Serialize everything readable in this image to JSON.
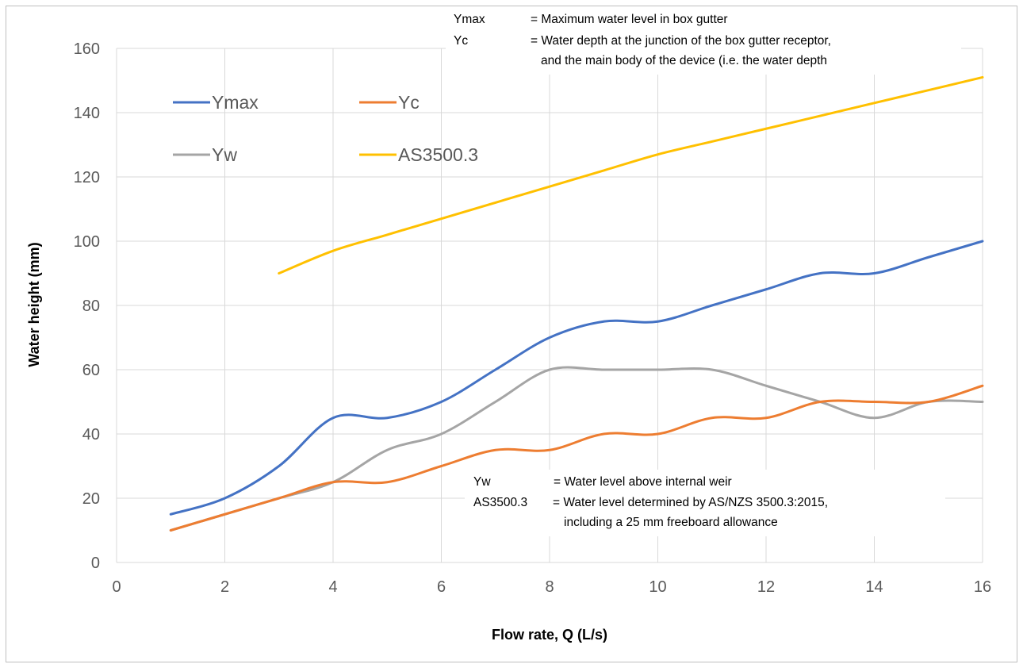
{
  "chart_data": {
    "type": "line",
    "xlabel": "Flow rate, Q (L/s)",
    "ylabel": "Water height (mm)",
    "xlim": [
      0,
      16
    ],
    "ylim": [
      0,
      160
    ],
    "xticks": [
      0,
      2,
      4,
      6,
      8,
      10,
      12,
      14,
      16
    ],
    "yticks": [
      0,
      20,
      40,
      60,
      80,
      100,
      120,
      140,
      160
    ],
    "grid": true,
    "legend": "top-left, two columns",
    "series": [
      {
        "name": "Ymax",
        "color": "#4472C4",
        "x": [
          1,
          2,
          3,
          4,
          5,
          6,
          7,
          8,
          9,
          10,
          11,
          12,
          13,
          14,
          15,
          16
        ],
        "y": [
          15,
          20,
          30,
          45,
          45,
          50,
          60,
          70,
          75,
          75,
          80,
          85,
          90,
          90,
          95,
          100
        ]
      },
      {
        "name": "Yc",
        "color": "#ED7D31",
        "x": [
          1,
          2,
          3,
          4,
          5,
          6,
          7,
          8,
          9,
          10,
          11,
          12,
          13,
          14,
          15,
          16
        ],
        "y": [
          10,
          15,
          20,
          25,
          25,
          30,
          35,
          35,
          40,
          40,
          45,
          45,
          50,
          50,
          50,
          55
        ]
      },
      {
        "name": "Yw",
        "color": "#A5A5A5",
        "x": [
          1,
          2,
          3,
          4,
          5,
          6,
          7,
          8,
          9,
          10,
          11,
          12,
          13,
          14,
          15,
          16
        ],
        "y": [
          10,
          15,
          20,
          25,
          35,
          40,
          50,
          60,
          60,
          60,
          60,
          55,
          50,
          45,
          50,
          50
        ]
      },
      {
        "name": "AS3500.3",
        "color": "#FFC000",
        "x": [
          3,
          4,
          5,
          6,
          7,
          8,
          9,
          10,
          11,
          12,
          13,
          14,
          15,
          16
        ],
        "y": [
          90,
          97,
          102,
          107,
          112,
          117,
          122,
          127,
          131,
          135,
          139,
          143,
          147,
          151
        ]
      }
    ],
    "annotations": {
      "top": [
        {
          "term": "Ymax",
          "desc": "= Maximum water level in box gutter"
        },
        {
          "term": "Yc",
          "desc": "= Water depth at the junction of the box gutter receptor,"
        },
        {
          "term": "",
          "desc": "and the main body of the device (i.e. the water depth"
        }
      ],
      "bottom": [
        {
          "term": "Yw",
          "desc": "= Water level above internal weir"
        },
        {
          "term": "AS3500.3",
          "desc": "= Water level determined by AS/NZS 3500.3:2015,"
        },
        {
          "term": "",
          "desc": "including a 25 mm freeboard allowance"
        }
      ]
    }
  }
}
